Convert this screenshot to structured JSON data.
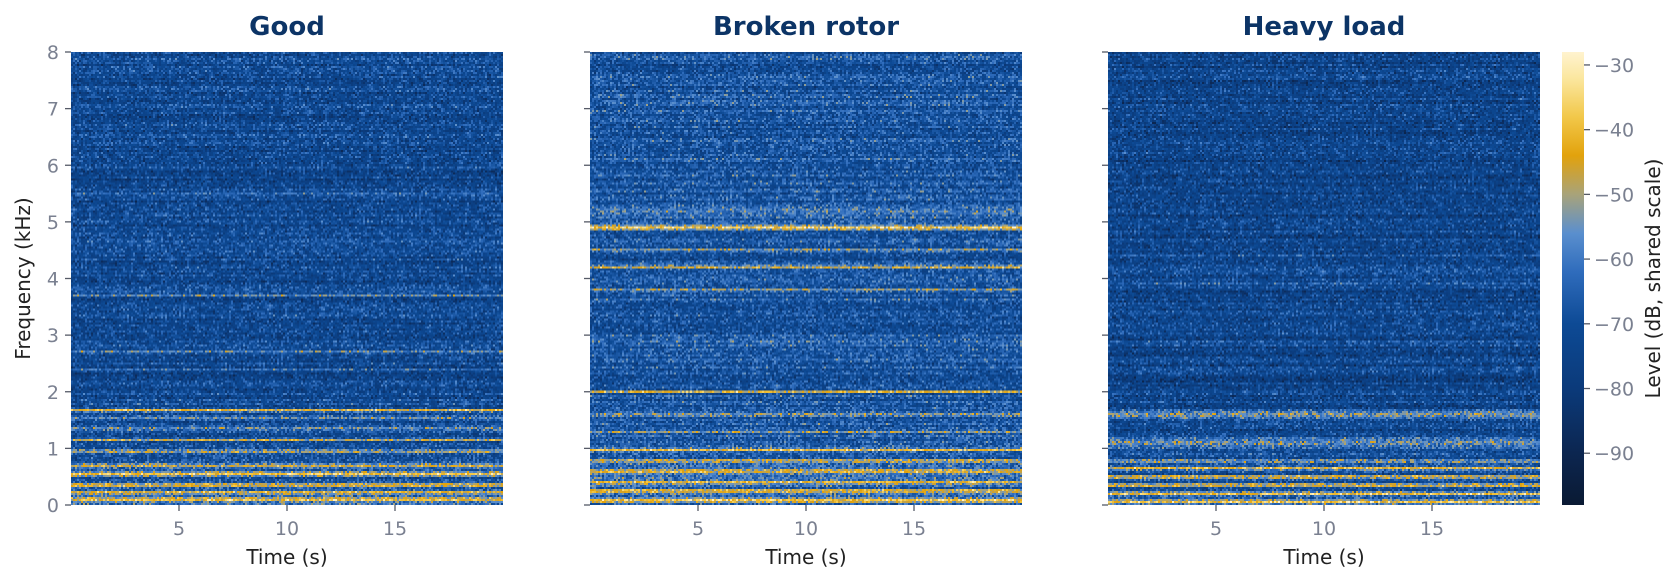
{
  "chart_data": {
    "type": "heatmap",
    "colorbar": {
      "label": "Level (dB, shared scale)",
      "range": [
        -98,
        -28
      ],
      "ticks": [
        -30,
        -40,
        -50,
        -60,
        -70,
        -80,
        -90
      ],
      "tick_labels": [
        "−30",
        "−40",
        "−50",
        "−60",
        "−70",
        "−80",
        "−90"
      ],
      "colormap": [
        {
          "v": -98,
          "c": "#0a1a33"
        },
        {
          "v": -90,
          "c": "#0c2650"
        },
        {
          "v": -80,
          "c": "#0b3a7a"
        },
        {
          "v": -70,
          "c": "#0d4a95"
        },
        {
          "v": -62,
          "c": "#2f6cbc"
        },
        {
          "v": -56,
          "c": "#5a8fce"
        },
        {
          "v": -50,
          "c": "#a8a37a"
        },
        {
          "v": -44,
          "c": "#e2a20c"
        },
        {
          "v": -38,
          "c": "#f2c84a"
        },
        {
          "v": -32,
          "c": "#fbe7a0"
        },
        {
          "v": -28,
          "c": "#fff3cf"
        }
      ]
    },
    "panels": [
      {
        "title": "Good",
        "xlabel": "Time (s)",
        "ylabel": "Frequency (kHz)",
        "base_db": -72,
        "bands": [
          {
            "f": 0.1,
            "w": 0.06,
            "db": -36
          },
          {
            "f": 0.22,
            "w": 0.05,
            "db": -37
          },
          {
            "f": 0.35,
            "w": 0.06,
            "db": -40
          },
          {
            "f": 0.55,
            "w": 0.07,
            "db": -39
          },
          {
            "f": 0.7,
            "w": 0.05,
            "db": -42
          },
          {
            "f": 0.95,
            "w": 0.04,
            "db": -44
          },
          {
            "f": 1.15,
            "w": 0.03,
            "db": -47
          },
          {
            "f": 1.35,
            "w": 0.03,
            "db": -46
          },
          {
            "f": 1.55,
            "w": 0.03,
            "db": -47
          },
          {
            "f": 1.68,
            "w": 0.04,
            "db": -42
          },
          {
            "f": 2.4,
            "w": 0.02,
            "db": -52
          },
          {
            "f": 2.7,
            "w": 0.02,
            "db": -50
          },
          {
            "f": 2.9,
            "w": 0.02,
            "db": -47
          },
          {
            "f": 3.7,
            "w": 0.02,
            "db": -56
          },
          {
            "f": 4.6,
            "w": 0.03,
            "db": -64
          },
          {
            "f": 5.5,
            "w": 0.03,
            "db": -62
          },
          {
            "f": 6.3,
            "w": 0.05,
            "db": -82
          },
          {
            "f": 7.1,
            "w": 0.08,
            "db": -80
          }
        ]
      },
      {
        "title": "Broken rotor",
        "xlabel": "Time (s)",
        "ylabel": "",
        "base_db": -68,
        "bands": [
          {
            "f": 0.08,
            "w": 0.05,
            "db": -34
          },
          {
            "f": 0.25,
            "w": 0.05,
            "db": -36
          },
          {
            "f": 0.4,
            "w": 0.05,
            "db": -39
          },
          {
            "f": 0.6,
            "w": 0.07,
            "db": -40
          },
          {
            "f": 0.78,
            "w": 0.05,
            "db": -42
          },
          {
            "f": 0.97,
            "w": 0.04,
            "db": -38
          },
          {
            "f": 1.3,
            "w": 0.03,
            "db": -46
          },
          {
            "f": 1.6,
            "w": 0.06,
            "db": -50
          },
          {
            "f": 2.0,
            "w": 0.03,
            "db": -44
          },
          {
            "f": 2.9,
            "w": 0.02,
            "db": -55
          },
          {
            "f": 3.8,
            "w": 0.03,
            "db": -50
          },
          {
            "f": 4.2,
            "w": 0.04,
            "db": -42
          },
          {
            "f": 4.5,
            "w": 0.03,
            "db": -40
          },
          {
            "f": 4.9,
            "w": 0.07,
            "db": -36
          },
          {
            "f": 5.2,
            "w": 0.15,
            "db": -58
          },
          {
            "f": 6.1,
            "w": 0.05,
            "db": -62
          },
          {
            "f": 7.0,
            "w": 0.08,
            "db": -75
          }
        ]
      },
      {
        "title": "Heavy load",
        "xlabel": "Time (s)",
        "ylabel": "",
        "base_db": -74,
        "bands": [
          {
            "f": 0.06,
            "w": 0.05,
            "db": -35
          },
          {
            "f": 0.2,
            "w": 0.05,
            "db": -37
          },
          {
            "f": 0.35,
            "w": 0.05,
            "db": -38
          },
          {
            "f": 0.5,
            "w": 0.05,
            "db": -39
          },
          {
            "f": 0.65,
            "w": 0.05,
            "db": -40
          },
          {
            "f": 0.78,
            "w": 0.04,
            "db": -44
          },
          {
            "f": 1.1,
            "w": 0.15,
            "db": -54
          },
          {
            "f": 1.6,
            "w": 0.12,
            "db": -52
          },
          {
            "f": 2.9,
            "w": 0.02,
            "db": -50
          },
          {
            "f": 3.9,
            "w": 0.04,
            "db": -62
          },
          {
            "f": 4.4,
            "w": 0.03,
            "db": -64
          },
          {
            "f": 6.3,
            "w": 0.06,
            "db": -84
          },
          {
            "f": 7.0,
            "w": 0.1,
            "db": -85
          }
        ]
      }
    ],
    "x_range": [
      0,
      20
    ],
    "x_ticks": [
      5,
      10,
      15
    ],
    "y_range": [
      0,
      8
    ],
    "y_ticks": [
      0,
      1,
      2,
      3,
      4,
      5,
      6,
      7,
      8
    ]
  }
}
